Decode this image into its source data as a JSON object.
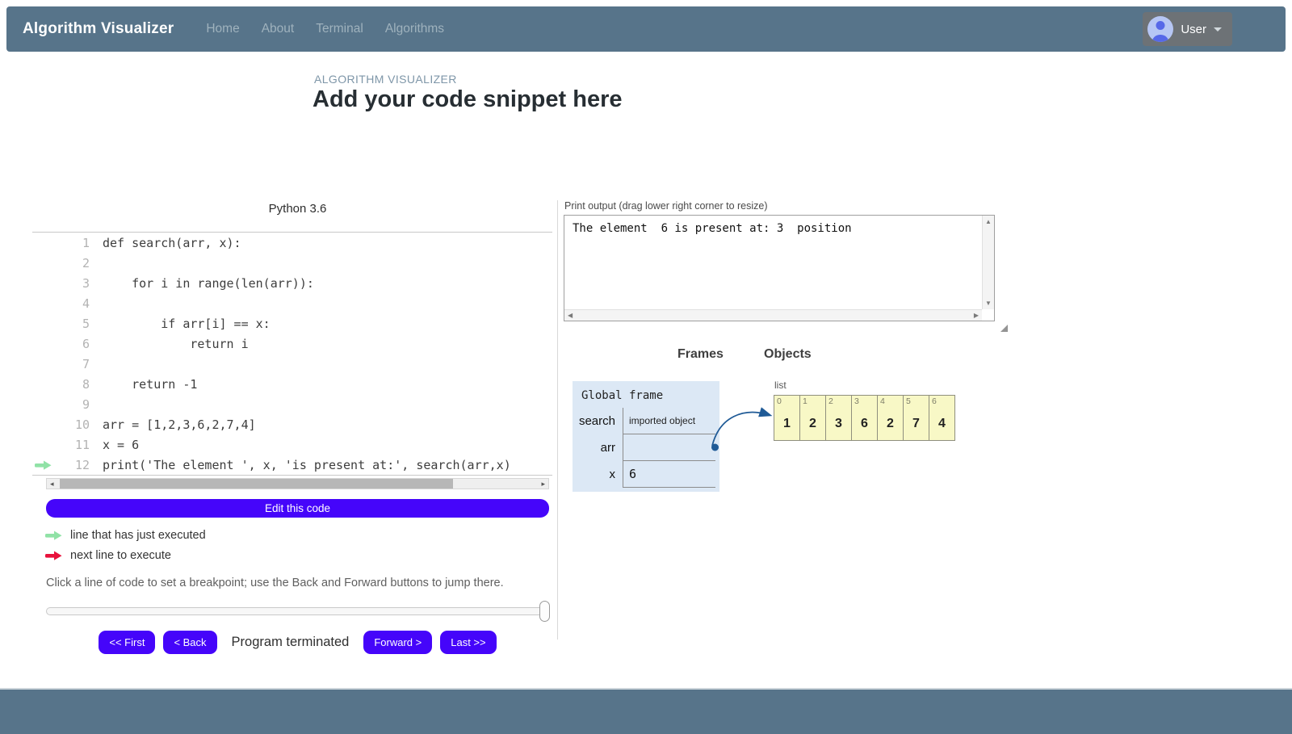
{
  "navbar": {
    "brand": "Algorithm Visualizer",
    "links": [
      "Home",
      "About",
      "Terminal",
      "Algorithms"
    ],
    "user_label": "User"
  },
  "header": {
    "subtitle": "ALGORITHM VISUALIZER",
    "title": "Add your code snippet here"
  },
  "editor": {
    "language_label": "Python 3.6",
    "lines": [
      {
        "num": 1,
        "text": "def search(arr, x):",
        "marker": ""
      },
      {
        "num": 2,
        "text": "",
        "marker": ""
      },
      {
        "num": 3,
        "text": "    for i in range(len(arr)):",
        "marker": ""
      },
      {
        "num": 4,
        "text": "",
        "marker": ""
      },
      {
        "num": 5,
        "text": "        if arr[i] == x:",
        "marker": ""
      },
      {
        "num": 6,
        "text": "            return i",
        "marker": ""
      },
      {
        "num": 7,
        "text": "",
        "marker": ""
      },
      {
        "num": 8,
        "text": "    return -1",
        "marker": ""
      },
      {
        "num": 9,
        "text": "",
        "marker": ""
      },
      {
        "num": 10,
        "text": "arr = [1,2,3,6,2,7,4]",
        "marker": ""
      },
      {
        "num": 11,
        "text": "x = 6",
        "marker": ""
      },
      {
        "num": 12,
        "text": "print('The element ', x, 'is present at:', search(arr,x)",
        "marker": "executed"
      }
    ],
    "edit_button": "Edit this code",
    "legend": [
      {
        "kind": "executed",
        "label": "line that has just executed"
      },
      {
        "kind": "next",
        "label": "next line to execute"
      }
    ],
    "breakpoint_hint": "Click a line of code to set a breakpoint; use the Back and Forward buttons to jump there.",
    "slider_percent": 100,
    "controls": {
      "first": "<< First",
      "back": "< Back",
      "status": "Program terminated",
      "forward": "Forward >",
      "last": "Last >>"
    }
  },
  "output": {
    "label": "Print output (drag lower right corner to resize)",
    "text": "The element  6 is present at: 3  position"
  },
  "viz": {
    "frames_heading": "Frames",
    "objects_heading": "Objects",
    "global_frame": {
      "title": "Global frame",
      "rows": [
        {
          "name": "search",
          "value": "imported object",
          "kind": "small"
        },
        {
          "name": "arr",
          "value": "",
          "kind": "pointer"
        },
        {
          "name": "x",
          "value": "6",
          "kind": "mono"
        }
      ]
    },
    "list_object": {
      "type_label": "list",
      "indices": [
        0,
        1,
        2,
        3,
        4,
        5,
        6
      ],
      "values": [
        1,
        2,
        3,
        6,
        2,
        7,
        4
      ]
    }
  },
  "icons": {
    "executed_arrow": "green-arrow-icon",
    "next_arrow": "red-arrow-icon"
  },
  "colors": {
    "navbar": "#57748a",
    "nav_link": "#9fb2bd",
    "chip_bg": "#6d7276",
    "avatar_bg": "#b6c6f4",
    "avatar_fg": "#5668e8",
    "accent": "#4505fa",
    "exec_arrow": "#90e2a6",
    "next_arrow": "#e8123c",
    "frame_bg": "#dce8f5",
    "cell_bg": "#f8f8c6",
    "cell_border": "#8f8f7e",
    "pointer": "#1f5a96",
    "subtitle": "#7e96a8"
  }
}
